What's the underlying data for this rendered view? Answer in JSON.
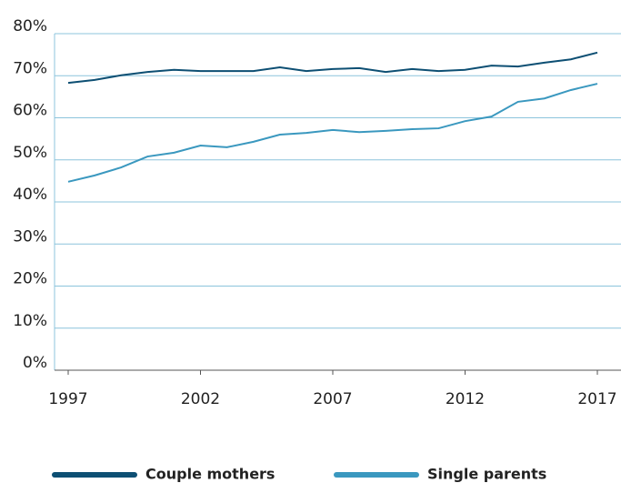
{
  "chart_data": {
    "type": "line",
    "x": [
      1997,
      1998,
      1999,
      2000,
      2001,
      2002,
      2003,
      2004,
      2005,
      2006,
      2007,
      2008,
      2009,
      2010,
      2011,
      2012,
      2013,
      2014,
      2015,
      2016,
      2017
    ],
    "series": [
      {
        "name": "Couple mothers",
        "color": "#0d4f73",
        "values": [
          68.3,
          69.0,
          70.1,
          70.9,
          71.4,
          71.1,
          71.1,
          71.1,
          72.0,
          71.1,
          71.6,
          71.8,
          70.9,
          71.6,
          71.1,
          71.4,
          72.4,
          72.2,
          73.1,
          73.9,
          75.5
        ]
      },
      {
        "name": "Single parents",
        "color": "#3a98bf",
        "values": [
          44.8,
          46.3,
          48.2,
          50.8,
          51.7,
          53.4,
          53.0,
          54.3,
          56.0,
          56.4,
          57.1,
          56.6,
          56.9,
          57.3,
          57.5,
          59.2,
          60.3,
          63.8,
          64.6,
          66.6,
          68.1
        ]
      }
    ],
    "xlim": [
      1997,
      2017
    ],
    "xticks": [
      1997,
      2002,
      2007,
      2012,
      2017
    ],
    "ylim": [
      0,
      80
    ],
    "yticks": [
      {
        "value": 0,
        "label": "0%"
      },
      {
        "value": 10,
        "label": "10%"
      },
      {
        "value": 20,
        "label": "20%"
      },
      {
        "value": 30,
        "label": "30%"
      },
      {
        "value": 40,
        "label": "40%"
      },
      {
        "value": 50,
        "label": "50%"
      },
      {
        "value": 60,
        "label": "60%"
      },
      {
        "value": 70,
        "label": "70%"
      },
      {
        "value": 80,
        "label": "80%"
      }
    ],
    "grid": true,
    "legend": "bottom"
  }
}
